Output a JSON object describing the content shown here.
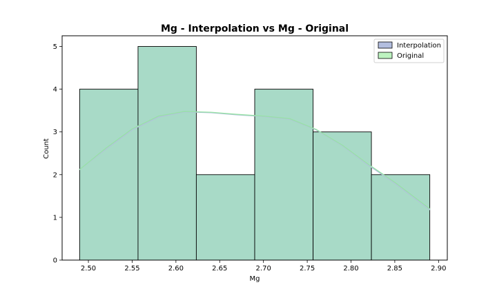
{
  "chart_data": {
    "type": "bar",
    "title": "Mg - Interpolation vs Mg - Original",
    "xlabel": "Mg",
    "ylabel": "Count",
    "xlim": [
      2.47,
      2.91
    ],
    "ylim": [
      0,
      5.25
    ],
    "xticks": [
      {
        "value": 2.5,
        "label": "2.50"
      },
      {
        "value": 2.55,
        "label": "2.55"
      },
      {
        "value": 2.6,
        "label": "2.60"
      },
      {
        "value": 2.65,
        "label": "2.65"
      },
      {
        "value": 2.7,
        "label": "2.70"
      },
      {
        "value": 2.75,
        "label": "2.75"
      },
      {
        "value": 2.8,
        "label": "2.80"
      },
      {
        "value": 2.85,
        "label": "2.85"
      },
      {
        "value": 2.9,
        "label": "2.90"
      }
    ],
    "yticks": [
      {
        "value": 0,
        "label": "0"
      },
      {
        "value": 1,
        "label": "1"
      },
      {
        "value": 2,
        "label": "2"
      },
      {
        "value": 3,
        "label": "3"
      },
      {
        "value": 4,
        "label": "4"
      },
      {
        "value": 5,
        "label": "5"
      }
    ],
    "bins": [
      {
        "x0": 2.49,
        "x1": 2.5567,
        "count": 4
      },
      {
        "x0": 2.5567,
        "x1": 2.6233,
        "count": 5
      },
      {
        "x0": 2.6233,
        "x1": 2.69,
        "count": 2
      },
      {
        "x0": 2.69,
        "x1": 2.7567,
        "count": 4
      },
      {
        "x0": 2.7567,
        "x1": 2.8233,
        "count": 3
      },
      {
        "x0": 2.8233,
        "x1": 2.89,
        "count": 2
      }
    ],
    "series": [
      {
        "name": "Interpolation",
        "color": "#b3bedf",
        "kde": [
          {
            "x": 2.49,
            "y": 2.12
          },
          {
            "x": 2.52,
            "y": 2.6
          },
          {
            "x": 2.55,
            "y": 3.05
          },
          {
            "x": 2.58,
            "y": 3.35
          },
          {
            "x": 2.61,
            "y": 3.47
          },
          {
            "x": 2.64,
            "y": 3.45
          },
          {
            "x": 2.67,
            "y": 3.4
          },
          {
            "x": 2.7,
            "y": 3.36
          },
          {
            "x": 2.73,
            "y": 3.3
          },
          {
            "x": 2.76,
            "y": 3.05
          },
          {
            "x": 2.79,
            "y": 2.68
          },
          {
            "x": 2.82,
            "y": 2.22
          },
          {
            "x": 2.85,
            "y": 1.8
          },
          {
            "x": 2.89,
            "y": 1.18
          }
        ]
      },
      {
        "name": "Original",
        "color": "#bdf2c0",
        "kde": [
          {
            "x": 2.49,
            "y": 2.12
          },
          {
            "x": 2.52,
            "y": 2.62
          },
          {
            "x": 2.55,
            "y": 3.07
          },
          {
            "x": 2.58,
            "y": 3.37
          },
          {
            "x": 2.61,
            "y": 3.48
          },
          {
            "x": 2.64,
            "y": 3.46
          },
          {
            "x": 2.67,
            "y": 3.41
          },
          {
            "x": 2.7,
            "y": 3.37
          },
          {
            "x": 2.73,
            "y": 3.31
          },
          {
            "x": 2.76,
            "y": 3.06
          },
          {
            "x": 2.79,
            "y": 2.69
          },
          {
            "x": 2.82,
            "y": 2.24
          },
          {
            "x": 2.85,
            "y": 1.82
          },
          {
            "x": 2.89,
            "y": 1.2
          }
        ]
      }
    ],
    "overlap_fill_color": "#a8dac7",
    "kde_line_color": "#98e2a7",
    "legend": {
      "position": "top-right",
      "entries": [
        {
          "label": "Interpolation",
          "color": "#b3bedf"
        },
        {
          "label": "Original",
          "color": "#bdf2c0"
        }
      ]
    },
    "grid": false
  }
}
